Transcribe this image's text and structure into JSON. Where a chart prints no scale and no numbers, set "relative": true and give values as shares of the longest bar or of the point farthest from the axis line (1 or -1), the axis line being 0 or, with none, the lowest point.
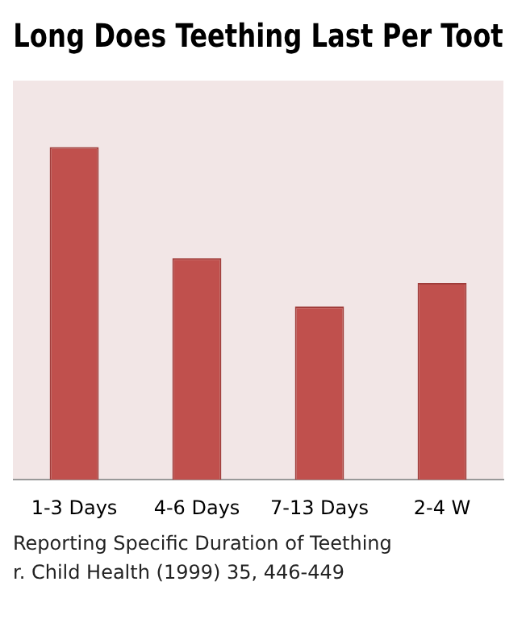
{
  "chart_data": {
    "type": "bar",
    "title": "Long Does Teething Last Per Toot",
    "categories": [
      "1-3 Days",
      "4-6 Days",
      "7-13 Days",
      "2-4 W"
    ],
    "values": [
      1,
      0.666,
      0.521,
      0.592
    ],
    "color": "#c0504d",
    "relative": true,
    "annotations": [
      "Reporting Specific Duration of Teething",
      "r. Child Health (1999) 35, 446-449"
    ]
  }
}
